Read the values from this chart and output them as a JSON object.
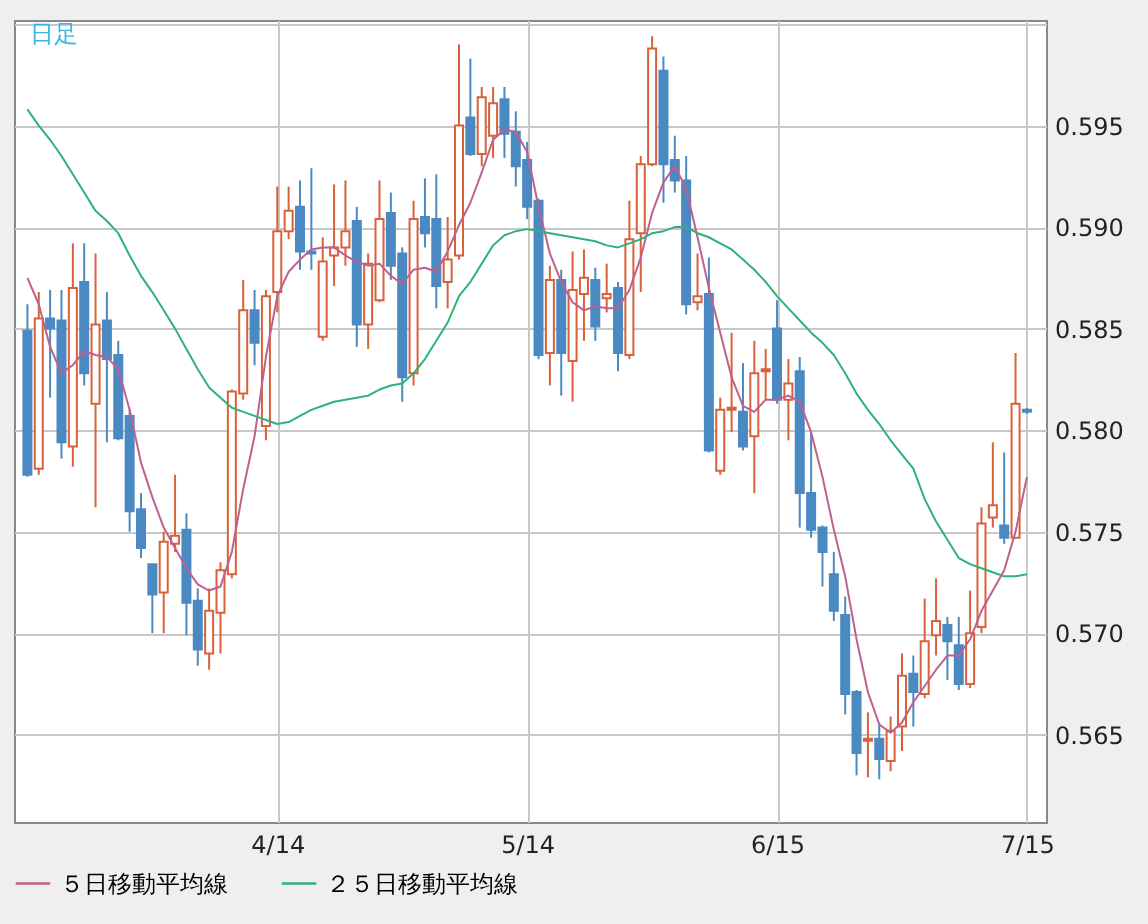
{
  "chart_data": {
    "type": "candlestick",
    "annotations": [
      "日足"
    ],
    "categories": [
      null,
      null,
      null,
      null,
      null,
      null,
      null,
      null,
      null,
      null,
      null,
      null,
      null,
      null,
      null,
      null,
      null,
      null,
      null,
      null,
      null,
      null,
      "4/14",
      null,
      null,
      null,
      null,
      null,
      null,
      null,
      null,
      null,
      null,
      null,
      null,
      null,
      null,
      null,
      null,
      null,
      null,
      null,
      null,
      null,
      "5/14",
      null,
      null,
      null,
      null,
      null,
      null,
      null,
      null,
      null,
      null,
      null,
      null,
      null,
      null,
      null,
      null,
      null,
      null,
      null,
      null,
      null,
      "6/15",
      null,
      null,
      null,
      null,
      null,
      null,
      null,
      null,
      null,
      null,
      null,
      null,
      null,
      null,
      null,
      null,
      null,
      null,
      null,
      null,
      null,
      "7/15"
    ],
    "ohlc": [
      [
        0.5849,
        0.5862,
        0.5777,
        0.5778
      ],
      [
        0.5781,
        0.5868,
        0.5778,
        0.5855
      ],
      [
        0.5855,
        0.5869,
        0.5816,
        0.585
      ],
      [
        0.5854,
        0.5869,
        0.5786,
        0.5794
      ],
      [
        0.5792,
        0.5892,
        0.5782,
        0.587
      ],
      [
        0.5873,
        0.5892,
        0.5822,
        0.5828
      ],
      [
        0.5813,
        0.5887,
        0.5762,
        0.5852
      ],
      [
        0.5854,
        0.5868,
        0.5794,
        0.5835
      ],
      [
        0.5837,
        0.5844,
        0.5795,
        0.5796
      ],
      [
        0.5807,
        0.581,
        0.575,
        0.576
      ],
      [
        0.5761,
        0.5769,
        0.5737,
        0.5742
      ],
      [
        0.5734,
        0.5734,
        0.57,
        0.5719
      ],
      [
        0.572,
        0.575,
        0.57,
        0.5745
      ],
      [
        0.5744,
        0.5778,
        0.574,
        0.5748
      ],
      [
        0.5751,
        0.5759,
        0.5699,
        0.5715
      ],
      [
        0.5716,
        0.5722,
        0.5684,
        0.5692
      ],
      [
        0.569,
        0.5722,
        0.5682,
        0.5711
      ],
      [
        0.571,
        0.5735,
        0.569,
        0.5731
      ],
      [
        0.5729,
        0.582,
        0.5727,
        0.5819
      ],
      [
        0.5818,
        0.5874,
        0.5815,
        0.5859
      ],
      [
        0.5859,
        0.5869,
        0.5832,
        0.5843
      ],
      [
        0.5802,
        0.5869,
        0.5795,
        0.5866
      ],
      [
        0.5868,
        0.592,
        0.5858,
        0.5898
      ],
      [
        0.5898,
        0.592,
        0.5894,
        0.5908
      ],
      [
        0.591,
        0.5923,
        0.5879,
        0.5888
      ],
      [
        0.5888,
        0.5929,
        0.5879,
        0.5887
      ],
      [
        0.5846,
        0.5895,
        0.5844,
        0.5883
      ],
      [
        0.5886,
        0.5921,
        0.5871,
        0.589
      ],
      [
        0.589,
        0.5923,
        0.5881,
        0.5898
      ],
      [
        0.5903,
        0.591,
        0.5841,
        0.5852
      ],
      [
        0.5852,
        0.5887,
        0.584,
        0.5882
      ],
      [
        0.5864,
        0.5923,
        0.5863,
        0.5904
      ],
      [
        0.5907,
        0.5917,
        0.5874,
        0.5881
      ],
      [
        0.5887,
        0.589,
        0.5814,
        0.5826
      ],
      [
        0.5828,
        0.5913,
        0.5822,
        0.5904
      ],
      [
        0.5905,
        0.5924,
        0.589,
        0.5897
      ],
      [
        0.5904,
        0.5926,
        0.586,
        0.5871
      ],
      [
        0.5873,
        0.5905,
        0.586,
        0.5884
      ],
      [
        0.5886,
        0.599,
        0.5884,
        0.595
      ],
      [
        0.5954,
        0.5983,
        0.5935,
        0.5936
      ],
      [
        0.5936,
        0.5969,
        0.593,
        0.5964
      ],
      [
        0.5945,
        0.5969,
        0.5934,
        0.5961
      ],
      [
        0.5963,
        0.5969,
        0.5934,
        0.5946
      ],
      [
        0.5947,
        0.5957,
        0.592,
        0.593
      ],
      [
        0.5933,
        0.5942,
        0.5904,
        0.591
      ],
      [
        0.5913,
        0.5914,
        0.5835,
        0.5837
      ],
      [
        0.5838,
        0.5881,
        0.5822,
        0.5874
      ],
      [
        0.5874,
        0.5879,
        0.5817,
        0.5838
      ],
      [
        0.5834,
        0.5888,
        0.5814,
        0.5869
      ],
      [
        0.5867,
        0.5889,
        0.5844,
        0.5875
      ],
      [
        0.5874,
        0.588,
        0.5844,
        0.5851
      ],
      [
        0.5865,
        0.5882,
        0.5858,
        0.5867
      ],
      [
        0.587,
        0.5873,
        0.5829,
        0.5838
      ],
      [
        0.5837,
        0.5913,
        0.5835,
        0.5894
      ],
      [
        0.5897,
        0.5935,
        0.5868,
        0.5931
      ],
      [
        0.5931,
        0.5994,
        0.593,
        0.5988
      ],
      [
        0.5977,
        0.5984,
        0.5912,
        0.5931
      ],
      [
        0.5933,
        0.5945,
        0.5917,
        0.5923
      ],
      [
        0.5923,
        0.5935,
        0.5857,
        0.5862
      ],
      [
        0.5863,
        0.5887,
        0.5859,
        0.5866
      ],
      [
        0.5867,
        0.5885,
        0.5789,
        0.579
      ],
      [
        0.578,
        0.5816,
        0.5778,
        0.581
      ],
      [
        0.581,
        0.5848,
        0.5799,
        0.5811
      ],
      [
        0.5809,
        0.5833,
        0.579,
        0.5792
      ],
      [
        0.5797,
        0.5844,
        0.5769,
        0.5828
      ],
      [
        0.5829,
        0.584,
        0.5815,
        0.583
      ],
      [
        0.585,
        0.5864,
        0.5813,
        0.5815
      ],
      [
        0.5815,
        0.5835,
        0.5795,
        0.5823
      ],
      [
        0.5829,
        0.5836,
        0.5752,
        0.5769
      ],
      [
        0.5769,
        0.5799,
        0.5747,
        0.5751
      ],
      [
        0.5752,
        0.5753,
        0.5723,
        0.574
      ],
      [
        0.5729,
        0.574,
        0.5706,
        0.5711
      ],
      [
        0.5709,
        0.5718,
        0.566,
        0.567
      ],
      [
        0.5671,
        0.5672,
        0.563,
        0.5641
      ],
      [
        0.5647,
        0.5661,
        0.5629,
        0.5648
      ],
      [
        0.5648,
        0.5656,
        0.5628,
        0.5638
      ],
      [
        0.5637,
        0.5659,
        0.5632,
        0.5652
      ],
      [
        0.5654,
        0.569,
        0.5642,
        0.5679
      ],
      [
        0.568,
        0.5689,
        0.5654,
        0.5671
      ],
      [
        0.567,
        0.5717,
        0.5668,
        0.5696
      ],
      [
        0.5699,
        0.5727,
        0.5689,
        0.5706
      ],
      [
        0.5704,
        0.5708,
        0.5677,
        0.5696
      ],
      [
        0.5694,
        0.5708,
        0.5672,
        0.5675
      ],
      [
        0.5675,
        0.5721,
        0.5673,
        0.57
      ],
      [
        0.5703,
        0.5762,
        0.57,
        0.5754
      ],
      [
        0.5757,
        0.5794,
        0.5752,
        0.5763
      ],
      [
        0.5753,
        0.5789,
        0.5744,
        0.5747
      ],
      [
        0.5747,
        0.5838,
        0.5747,
        0.5813
      ],
      [
        0.581,
        0.5811,
        0.5808,
        0.5809
      ]
    ],
    "colors": [
      "#4a89c2",
      "#d9603b",
      "#4a89c2",
      "#4a89c2",
      "#d9603b",
      "#4a89c2",
      "#d9603b",
      "#4a89c2",
      "#4a89c2",
      "#4a89c2",
      "#4a89c2",
      "#4a89c2",
      "#d9603b",
      "#d9603b",
      "#4a89c2",
      "#4a89c2",
      "#d9603b",
      "#d9603b",
      "#d9603b",
      "#d9603b",
      "#4a89c2",
      "#d9603b",
      "#d9603b",
      "#d9603b",
      "#4a89c2",
      "#4a89c2",
      "#d9603b",
      "#d9603b",
      "#d9603b",
      "#4a89c2",
      "#d9603b",
      "#d9603b",
      "#4a89c2",
      "#4a89c2",
      "#d9603b",
      "#4a89c2",
      "#4a89c2",
      "#d9603b",
      "#d9603b",
      "#4a89c2",
      "#d9603b",
      "#d9603b",
      "#4a89c2",
      "#4a89c2",
      "#4a89c2",
      "#4a89c2",
      "#d9603b",
      "#4a89c2",
      "#d9603b",
      "#d9603b",
      "#4a89c2",
      "#d9603b",
      "#4a89c2",
      "#d9603b",
      "#d9603b",
      "#d9603b",
      "#4a89c2",
      "#4a89c2",
      "#4a89c2",
      "#d9603b",
      "#4a89c2",
      "#d9603b",
      "#d9603b",
      "#4a89c2",
      "#d9603b",
      "#d9603b",
      "#4a89c2",
      "#d9603b",
      "#4a89c2",
      "#4a89c2",
      "#4a89c2",
      "#4a89c2",
      "#4a89c2",
      "#4a89c2",
      "#d9603b",
      "#4a89c2",
      "#d9603b",
      "#d9603b",
      "#4a89c2",
      "#d9603b",
      "#d9603b",
      "#4a89c2",
      "#4a89c2",
      "#d9603b",
      "#d9603b",
      "#d9603b",
      "#4a89c2",
      "#d9603b",
      "#4a89c2"
    ],
    "series": [
      {
        "name": "５日移動平均線",
        "type": "line",
        "color": "#c0608e",
        "values": [
          0.5875,
          0.5862,
          0.5841,
          0.5828,
          0.5832,
          0.5839,
          0.5837,
          0.5836,
          0.583,
          0.581,
          0.5784,
          0.5767,
          0.5752,
          0.5742,
          0.5732,
          0.5724,
          0.5721,
          0.5723,
          0.574,
          0.5771,
          0.5797,
          0.5836,
          0.5866,
          0.5878,
          0.5884,
          0.5889,
          0.589,
          0.589,
          0.5886,
          0.5883,
          0.5881,
          0.5882,
          0.5876,
          0.5872,
          0.5879,
          0.588,
          0.5878,
          0.5888,
          0.5901,
          0.5912,
          0.5927,
          0.5943,
          0.5948,
          0.5947,
          0.5937,
          0.591,
          0.5887,
          0.5873,
          0.5863,
          0.5859,
          0.5861,
          0.586,
          0.586,
          0.5869,
          0.5885,
          0.5907,
          0.5922,
          0.593,
          0.5919,
          0.5895,
          0.587,
          0.5848,
          0.5826,
          0.5812,
          0.5809,
          0.5815,
          0.5815,
          0.5817,
          0.5814,
          0.5799,
          0.5777,
          0.5751,
          0.5728,
          0.5697,
          0.5671,
          0.5655,
          0.5651,
          0.5656,
          0.5666,
          0.5674,
          0.5682,
          0.5689,
          0.5689,
          0.5697,
          0.5711,
          0.5721,
          0.5731,
          0.575,
          0.5777
        ]
      },
      {
        "name": "２５日移動平均線",
        "type": "line",
        "color": "#2fb27a",
        "values": [
          0.5958,
          0.595,
          0.5943,
          0.5935,
          0.5926,
          0.5917,
          0.5908,
          0.5903,
          0.5897,
          0.5886,
          0.5876,
          0.5868,
          0.5859,
          0.585,
          0.584,
          0.583,
          0.5821,
          0.5816,
          0.5811,
          0.5809,
          0.5807,
          0.5805,
          0.5803,
          0.5804,
          0.5807,
          0.581,
          0.5812,
          0.5814,
          0.5815,
          0.5816,
          0.5817,
          0.582,
          0.5822,
          0.5823,
          0.5828,
          0.5835,
          0.5844,
          0.5853,
          0.5866,
          0.5873,
          0.5882,
          0.5891,
          0.5896,
          0.5898,
          0.5899,
          0.5898,
          0.5897,
          0.5896,
          0.5895,
          0.5894,
          0.5893,
          0.5891,
          0.589,
          0.5892,
          0.5894,
          0.5897,
          0.5898,
          0.59,
          0.59,
          0.5897,
          0.5895,
          0.5892,
          0.5889,
          0.5884,
          0.5879,
          0.5873,
          0.5866,
          0.586,
          0.5854,
          0.5848,
          0.5843,
          0.5837,
          0.5828,
          0.5818,
          0.581,
          0.5803,
          0.5795,
          0.5788,
          0.5781,
          0.5766,
          0.5755,
          0.5746,
          0.5737,
          0.5734,
          0.5732,
          0.573,
          0.5728,
          0.5728,
          0.5729
        ]
      }
    ],
    "ylim": [
      0.5607,
      0.6002
    ],
    "yticks": [
      {
        "value": 0.565,
        "label": "0.565"
      },
      {
        "value": 0.57,
        "label": "0.570"
      },
      {
        "value": 0.575,
        "label": "0.575"
      },
      {
        "value": 0.58,
        "label": "0.580"
      },
      {
        "value": 0.585,
        "label": "0.585"
      },
      {
        "value": 0.59,
        "label": "0.590"
      },
      {
        "value": 0.595,
        "label": "0.595"
      },
      {
        "value": 0.6,
        "label": null
      }
    ],
    "grid": true,
    "legend": "bottom"
  }
}
